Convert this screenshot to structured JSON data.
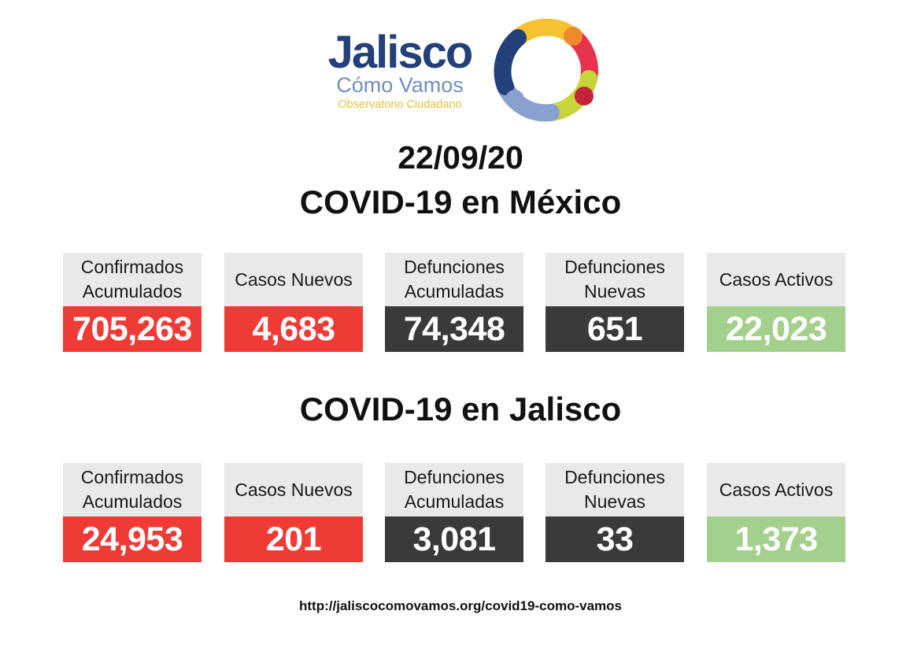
{
  "logo": {
    "title": "Jalisco",
    "subtitle": "Cómo Vamos",
    "tagline": "Observatorio Ciudadano"
  },
  "date": "22/09/20",
  "colors": {
    "red": "#ef3b36",
    "dark": "#3a3a3a",
    "green": "#a3d08c",
    "label_bg": "#e9e9e9"
  },
  "mexico": {
    "title": "COVID-19 en México",
    "cards": [
      {
        "label": "Confirmados\nAcumulados",
        "value": "705,263",
        "color": "red"
      },
      {
        "label": "Casos Nuevos",
        "value": "4,683",
        "color": "red"
      },
      {
        "label": "Defunciones\nAcumuladas",
        "value": "74,348",
        "color": "dark"
      },
      {
        "label": "Defunciones\nNuevas",
        "value": "651",
        "color": "dark"
      },
      {
        "label": "Casos Activos",
        "value": "22,023",
        "color": "green"
      }
    ]
  },
  "jalisco": {
    "title": "COVID-19 en Jalisco",
    "cards": [
      {
        "label": "Confirmados\nAcumulados",
        "value": "24,953",
        "color": "red"
      },
      {
        "label": "Casos Nuevos",
        "value": "201",
        "color": "red"
      },
      {
        "label": "Defunciones\nAcumuladas",
        "value": "3,081",
        "color": "dark"
      },
      {
        "label": "Defunciones\nNuevas",
        "value": "33",
        "color": "dark"
      },
      {
        "label": "Casos Activos",
        "value": "1,373",
        "color": "green"
      }
    ]
  },
  "footer": {
    "url": "http://jaliscocomovamos.org/covid19-como-vamos"
  }
}
